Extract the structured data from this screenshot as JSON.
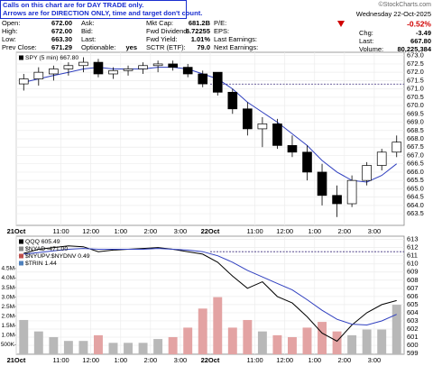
{
  "notice": [
    "Calls on this chart are for DAY TRADE only.",
    "Arrows are for DIRECTION ONLY, time and target don't count."
  ],
  "quote_table": {
    "rows": [
      [
        {
          "label": "Open:",
          "value": "672.00"
        },
        {
          "label": "Ask:"
        },
        {
          "label": "Mkt Cap:",
          "value": "681.2B"
        },
        {
          "label": "P/E:"
        }
      ],
      [
        {
          "label": "High:",
          "value": "672.00"
        },
        {
          "label": "Bid:"
        },
        {
          "label": "Fwd Dividend:",
          "value": "6.72255"
        },
        {
          "label": "EPS:"
        }
      ],
      [
        {
          "label": "Low:",
          "value": "663.30"
        },
        {
          "label": "Last:"
        },
        {
          "label": "Fwd Yield:",
          "value": "1.01%"
        },
        {
          "label": "Last Earnings:"
        }
      ],
      [
        {
          "label": "Prev Close:",
          "value": "671.29"
        },
        {
          "label": "Optionable:",
          "value": "yes"
        },
        {
          "label": "SCTR (ETF):",
          "value": "79.0"
        },
        {
          "label": "Next Earnings:"
        }
      ]
    ]
  },
  "summary": {
    "watermark": "©StockCharts.com",
    "date": "Wednesday 22-Oct-2025",
    "change_pct": "-0.52%",
    "rows": [
      {
        "label": "Chg:",
        "value": "-3.49"
      },
      {
        "label": "Last:",
        "value": "667.80"
      },
      {
        "label": "Volume:",
        "value": "80,225,384"
      }
    ]
  },
  "chart_data": [
    {
      "type": "candlestick",
      "legend": [
        {
          "name": "SPY (5 min) 667.80",
          "color": "#000000"
        }
      ],
      "candles": {
        "open": [
          671.3,
          671.6,
          671.9,
          672.2,
          672.4,
          672.6,
          671.9,
          672.1,
          672.2,
          672.4,
          672.5,
          672.3,
          671.9,
          672.0,
          670.8,
          669.8,
          668.6,
          668.9,
          667.6,
          667.2,
          666.0,
          664.6,
          664.1,
          665.5,
          666.4,
          667.2
        ],
        "high": [
          671.9,
          672.3,
          672.4,
          672.6,
          672.9,
          672.8,
          672.3,
          672.4,
          672.6,
          672.7,
          672.7,
          672.5,
          672.1,
          672.0,
          671.0,
          670.2,
          669.3,
          669.2,
          668.2,
          667.6,
          666.5,
          665.2,
          665.8,
          666.6,
          667.4,
          668.2
        ],
        "low": [
          670.9,
          671.2,
          671.5,
          671.8,
          672.0,
          671.7,
          671.6,
          671.8,
          671.9,
          672.0,
          672.1,
          671.7,
          671.1,
          670.6,
          669.5,
          668.2,
          667.5,
          667.4,
          666.9,
          665.5,
          664.0,
          663.3,
          663.9,
          665.2,
          666.1,
          666.9
        ],
        "close": [
          671.6,
          672.0,
          672.2,
          672.4,
          672.6,
          671.9,
          672.1,
          672.2,
          672.4,
          672.5,
          672.3,
          671.9,
          671.3,
          670.8,
          669.8,
          668.6,
          668.9,
          667.6,
          667.2,
          666.0,
          664.6,
          664.1,
          665.5,
          666.4,
          667.2,
          667.8
        ],
        "color": "#000000"
      },
      "series": [
        {
          "color": "#2f3fbf",
          "values": [
            671.4,
            671.6,
            671.8,
            672.0,
            672.2,
            672.3,
            672.2,
            672.2,
            672.2,
            672.3,
            672.3,
            672.2,
            671.9,
            671.6,
            671.0,
            670.2,
            669.6,
            669.0,
            668.3,
            667.6,
            666.7,
            666.0,
            665.5,
            665.4,
            665.8,
            666.5
          ]
        }
      ],
      "hline": {
        "value": 671.29,
        "color": "#3a2a7a"
      },
      "xlim": [
        0,
        26
      ],
      "xticks": [
        {
          "value": 0,
          "label": "21Oct"
        },
        {
          "value": 3,
          "label": "11:00"
        },
        {
          "value": 5,
          "label": "12:00"
        },
        {
          "value": 7,
          "label": "1:00"
        },
        {
          "value": 9,
          "label": "2:00"
        },
        {
          "value": 11,
          "label": "3:00"
        },
        {
          "value": 13,
          "label": "22Oct"
        },
        {
          "value": 16,
          "label": "11:00"
        },
        {
          "value": 18,
          "label": "12:00"
        },
        {
          "value": 20,
          "label": "1:00"
        },
        {
          "value": 22,
          "label": "2:00"
        },
        {
          "value": 24,
          "label": "3:00"
        }
      ],
      "ylim": [
        662.8,
        673.2
      ],
      "yticks": [
        663.5,
        {
          "value": 664,
          "label": "664.0"
        },
        664.5,
        {
          "value": 665,
          "label": "665.0"
        },
        665.5,
        {
          "value": 666,
          "label": "666.0"
        },
        666.5,
        {
          "value": 667,
          "label": "667.0"
        },
        667.5,
        {
          "value": 668,
          "label": "668.0"
        },
        668.5,
        {
          "value": 669,
          "label": "669.0"
        },
        669.5,
        {
          "value": 670,
          "label": "670.0"
        },
        670.5,
        {
          "value": 671,
          "label": "671.0"
        },
        671.5,
        {
          "value": 672,
          "label": "672.0"
        },
        672.5,
        {
          "value": 673,
          "label": "673.0"
        }
      ],
      "grid": true
    },
    {
      "type": "line",
      "legend": [
        {
          "name": "QQQ 605.49",
          "color": "#000000"
        },
        {
          "name": "$NYAD -471.00",
          "color": "#888888"
        },
        {
          "name": "$NYUPV:$NYDNV 0.49",
          "color": "#c0504d"
        },
        {
          "name": "$TRIN 1.44",
          "color": "#4f81bd"
        }
      ],
      "series": [
        {
          "color": "#000000",
          "values": [
            611.3,
            611.8,
            612.0,
            612.2,
            612.1,
            611.5,
            611.7,
            611.8,
            611.9,
            612.0,
            611.8,
            611.5,
            611.2,
            610.2,
            608.5,
            607.0,
            607.8,
            606.0,
            605.2,
            603.5,
            601.5,
            600.5,
            602.5,
            604.0,
            605.0,
            605.5
          ]
        },
        {
          "color": "#2f3fbf",
          "values": [
            611.2,
            611.4,
            611.6,
            611.8,
            611.9,
            611.8,
            611.8,
            611.8,
            611.8,
            611.9,
            611.8,
            611.7,
            611.5,
            611.0,
            610.2,
            609.2,
            608.4,
            607.6,
            606.8,
            605.6,
            604.3,
            603.2,
            602.6,
            602.5,
            603.0,
            603.8
          ]
        },
        {
          "axis": "y2",
          "colors": [
            "#b8b8b8",
            "#b8b8b8",
            "#b8b8b8",
            "#b8b8b8",
            "#b8b8b8",
            "#e3a3a3",
            "#b8b8b8",
            "#b8b8b8",
            "#b8b8b8",
            "#b8b8b8",
            "#e3a3a3",
            "#e3a3a3",
            "#e3a3a3",
            "#e3a3a3",
            "#e3a3a3",
            "#e3a3a3",
            "#b8b8b8",
            "#e3a3a3",
            "#e3a3a3",
            "#e3a3a3",
            "#e3a3a3",
            "#e3a3a3",
            "#b8b8b8",
            "#b8b8b8",
            "#b8b8b8",
            "#b8b8b8"
          ],
          "values": [
            1800000,
            1200000,
            900000,
            700000,
            700000,
            1000000,
            600000,
            600000,
            600000,
            800000,
            900000,
            1400000,
            2400000,
            3000000,
            1400000,
            1800000,
            1200000,
            1000000,
            900000,
            1400000,
            1700000,
            1200000,
            1000000,
            1300000,
            1300000,
            2600000
          ]
        }
      ],
      "hline": {
        "value": 611.5,
        "color": "#3a2a7a"
      },
      "xlim": [
        0,
        26
      ],
      "xticks": [
        {
          "value": 0,
          "label": "21Oct"
        },
        {
          "value": 3,
          "label": "11:00"
        },
        {
          "value": 5,
          "label": "12:00"
        },
        {
          "value": 7,
          "label": "1:00"
        },
        {
          "value": 9,
          "label": "2:00"
        },
        {
          "value": 11,
          "label": "3:00"
        },
        {
          "value": 13,
          "label": "22Oct"
        },
        {
          "value": 16,
          "label": "11:00"
        },
        {
          "value": 18,
          "label": "12:00"
        },
        {
          "value": 20,
          "label": "1:00"
        },
        {
          "value": 22,
          "label": "2:00"
        },
        {
          "value": 24,
          "label": "3:00"
        }
      ],
      "ylim": [
        598.9,
        613.4
      ],
      "yticks": [
        599,
        600,
        601,
        602,
        603,
        604,
        605,
        606,
        607,
        608,
        609,
        610,
        611,
        612,
        613
      ],
      "y2lim": [
        0,
        6200000
      ],
      "y2ticks": [
        {
          "value": 500000,
          "label": "500K"
        },
        {
          "value": 1000000,
          "label": "1.0M"
        },
        {
          "value": 1500000,
          "label": "1.5M"
        },
        {
          "value": 2000000,
          "label": "2.0M"
        },
        {
          "value": 2500000,
          "label": "2.5M"
        },
        {
          "value": 3000000,
          "label": "3.0M"
        },
        {
          "value": 3500000,
          "label": "3.5M"
        },
        {
          "value": 4000000,
          "label": "4.0M"
        },
        {
          "value": 4500000,
          "label": "4.5M"
        }
      ],
      "grid": true
    }
  ]
}
